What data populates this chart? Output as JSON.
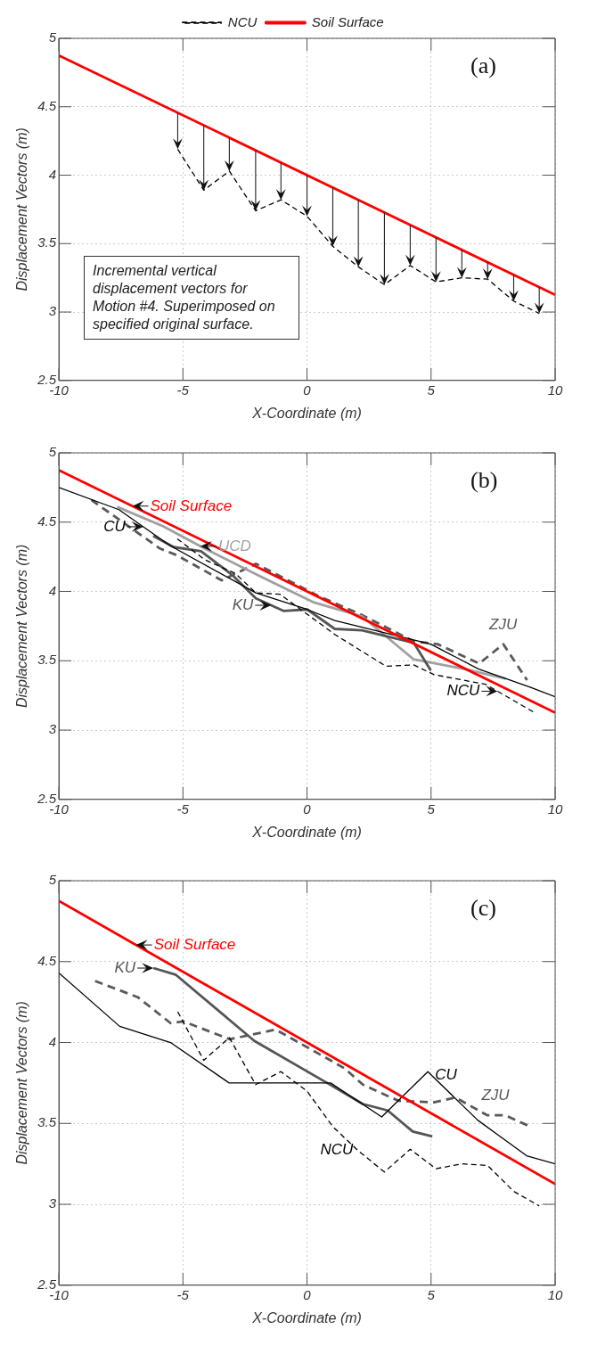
{
  "chart_data": [
    {
      "type": "line",
      "xlabel": "X-Coordinate (m)",
      "ylabel": "Displacement Vectors (m)",
      "xlim": [
        -10,
        10
      ],
      "ylim": [
        2.5,
        5
      ],
      "xticks": [
        -10,
        -5,
        0,
        5,
        10
      ],
      "yticks": [
        2.5,
        3,
        3.5,
        4,
        4.5,
        5
      ],
      "grid": true,
      "legend": "top",
      "annotations": [
        "(a)",
        "Incremental vertical displacement vectors for Motion #4. Superimposed on specified original surface."
      ],
      "series": [
        {
          "name": "NCU",
          "color": "#000000",
          "line_style": "dashed",
          "x": [
            -5.21,
            -4.16,
            -3.13,
            -2.07,
            -1.05,
            0,
            1.04,
            2.07,
            3.12,
            4.16,
            5.2,
            6.24,
            7.28,
            8.33,
            9.36
          ],
          "values": [
            4.19,
            3.89,
            4.03,
            3.74,
            3.82,
            3.7,
            3.48,
            3.33,
            3.2,
            3.34,
            3.22,
            3.25,
            3.24,
            3.08,
            2.99
          ]
        },
        {
          "name": "Soil Surface",
          "color": "#ff0000",
          "line_style": "solid",
          "x": [
            -10,
            10
          ],
          "values": [
            4.875,
            3.125
          ]
        }
      ]
    },
    {
      "type": "line",
      "xlabel": "X-Coordinate (m)",
      "ylabel": "Displacement Vectors (m)",
      "xlim": [
        -10,
        10
      ],
      "ylim": [
        2.5,
        5
      ],
      "xticks": [
        -10,
        -5,
        0,
        5,
        10
      ],
      "yticks": [
        2.5,
        3,
        3.5,
        4,
        4.5,
        5
      ],
      "grid": true,
      "annotations": [
        "(b)"
      ],
      "series": [
        {
          "name": "Soil Surface",
          "color": "#ff0000",
          "line_style": "solid",
          "x": [
            -10,
            10
          ],
          "values": [
            4.875,
            3.125
          ]
        },
        {
          "name": "CU",
          "color": "#000000",
          "line_style": "solid",
          "x": [
            -10,
            -7.58,
            -5.51,
            -2.06,
            0.01,
            1.12,
            4.99,
            6.92,
            8.99,
            10
          ],
          "values": [
            4.75,
            4.59,
            4.33,
            3.99,
            3.87,
            3.79,
            3.62,
            3.44,
            3.31,
            3.24
          ]
        },
        {
          "name": "NCU",
          "color": "#000000",
          "line_style": "dashed",
          "x": [
            -5.23,
            -4.13,
            -2.89,
            -2.06,
            -1.09,
            1.12,
            3.19,
            4.3,
            5.12,
            7.2,
            9.13
          ],
          "values": [
            4.38,
            4.23,
            4.13,
            3.99,
            3.98,
            3.69,
            3.46,
            3.47,
            3.4,
            3.33,
            3.13
          ]
        },
        {
          "name": "KU",
          "color": "#555555",
          "line_style": "solid",
          "x": [
            -6.2,
            -5.37,
            -4.27,
            -3.02,
            -2.06,
            -0.95,
            0.01,
            1.12,
            2.22,
            4.3,
            4.99
          ],
          "values": [
            4.4,
            4.32,
            4.29,
            4.12,
            3.95,
            3.86,
            3.87,
            3.73,
            3.72,
            3.63,
            3.43
          ]
        },
        {
          "name": "UCD",
          "color": "#a0a0a0",
          "line_style": "solid",
          "x": [
            -7.65,
            -5.79,
            -4.13,
            -1.78,
            0.29,
            2.22,
            4.3,
            6.37,
            8.02
          ],
          "values": [
            4.61,
            4.47,
            4.31,
            4.1,
            3.92,
            3.82,
            3.51,
            3.44,
            3.37
          ]
        },
        {
          "name": "ZJU",
          "color": "#595959",
          "line_style": "dashed",
          "x": [
            -8.69,
            -5.93,
            -5.23,
            -3.44,
            -2.06,
            0.43,
            2.22,
            4.3,
            5.26,
            6.94,
            7.91,
            8.87
          ],
          "values": [
            4.66,
            4.31,
            4.26,
            4.08,
            4.2,
            3.97,
            3.83,
            3.64,
            3.62,
            3.48,
            3.62,
            3.36
          ]
        }
      ]
    },
    {
      "type": "line",
      "xlabel": "X-Coordinate (m)",
      "ylabel": "Displacement Vectors (m)",
      "xlim": [
        -10,
        10
      ],
      "ylim": [
        2.5,
        5
      ],
      "xticks": [
        -10,
        -5,
        0,
        5,
        10
      ],
      "yticks": [
        2.5,
        3,
        3.5,
        4,
        4.5,
        5
      ],
      "grid": true,
      "annotations": [
        "(c)"
      ],
      "series": [
        {
          "name": "Soil Surface",
          "color": "#ff0000",
          "line_style": "solid",
          "x": [
            -10,
            10
          ],
          "values": [
            4.875,
            3.125
          ]
        },
        {
          "name": "CU",
          "color": "#000000",
          "line_style": "solid",
          "x": [
            -10,
            -7.55,
            -5.5,
            -3.14,
            -1.2,
            0.95,
            3.01,
            4.87,
            6.88,
            8.85,
            10
          ],
          "values": [
            4.43,
            4.1,
            4.0,
            3.75,
            3.75,
            3.75,
            3.54,
            3.82,
            3.52,
            3.3,
            3.25
          ]
        },
        {
          "name": "NCU",
          "color": "#000000",
          "line_style": "dashed",
          "x": [
            -5.21,
            -4.16,
            -3.13,
            -2.07,
            -1.05,
            0,
            1.04,
            2.07,
            3.12,
            4.16,
            5.2,
            6.24,
            7.28,
            8.33,
            9.36
          ],
          "values": [
            4.19,
            3.89,
            4.03,
            3.74,
            3.82,
            3.7,
            3.48,
            3.33,
            3.2,
            3.34,
            3.22,
            3.25,
            3.24,
            3.08,
            2.99
          ]
        },
        {
          "name": "KU",
          "color": "#555555",
          "line_style": "solid",
          "x": [
            -6.19,
            -5.3,
            -2.12,
            0.81,
            2.25,
            3.25,
            4.26,
            5.05
          ],
          "values": [
            4.46,
            4.42,
            4.01,
            3.75,
            3.62,
            3.58,
            3.45,
            3.42
          ]
        },
        {
          "name": "ZJU",
          "color": "#595959",
          "line_style": "dashed",
          "x": [
            -8.54,
            -6.82,
            -5.5,
            -4.97,
            -3.11,
            -1.26,
            1.52,
            2.25,
            3.68,
            5.12,
            5.98,
            7.27,
            7.99,
            9.0
          ],
          "values": [
            4.38,
            4.28,
            4.12,
            4.13,
            4.02,
            4.08,
            3.84,
            3.74,
            3.64,
            3.63,
            3.66,
            3.55,
            3.55,
            3.48
          ]
        }
      ]
    }
  ]
}
